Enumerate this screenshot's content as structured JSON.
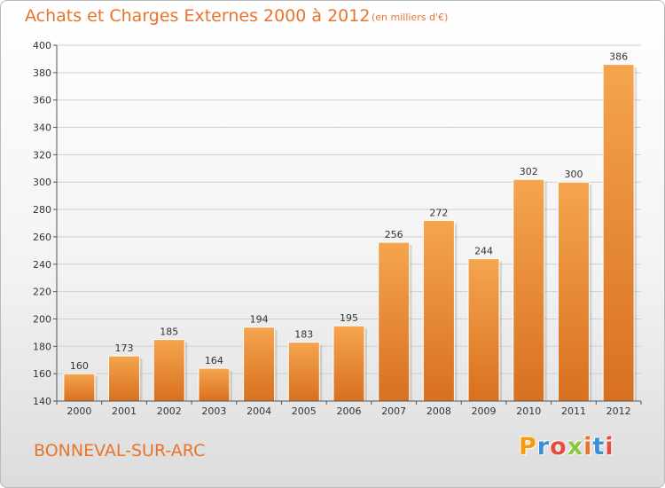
{
  "header": {
    "title": "Achats et Charges Externes 2000 à 2012",
    "subtitle": "(en milliers d'€)"
  },
  "footer": {
    "commune": "BONNEVAL-SUR-ARC",
    "logo_text": "Proxiti",
    "logo_letter_colors": [
      "#f39c12",
      "#3b8fd6",
      "#e74c3c",
      "#8dc63f",
      "#e8742a",
      "#3b8fd6",
      "#e74c3c"
    ]
  },
  "colors": {
    "bar_light": "#f5a54e",
    "bar_dark": "#d8701f",
    "accent": "#e8742a",
    "grid": "#cfcfcf",
    "axis": "#555555"
  },
  "chart_data": {
    "type": "bar",
    "title": "Achats et Charges Externes 2000 à 2012",
    "subtitle": "(en milliers d'€)",
    "categories": [
      "2000",
      "2001",
      "2002",
      "2003",
      "2004",
      "2005",
      "2006",
      "2007",
      "2008",
      "2009",
      "2010",
      "2011",
      "2012"
    ],
    "values": [
      160,
      173,
      185,
      164,
      194,
      183,
      195,
      256,
      272,
      244,
      302,
      300,
      386
    ],
    "ylim": [
      140,
      400
    ],
    "yticks": [
      140,
      160,
      180,
      200,
      220,
      240,
      260,
      280,
      300,
      320,
      340,
      360,
      380,
      400
    ],
    "grid": true,
    "data_labels": true
  }
}
